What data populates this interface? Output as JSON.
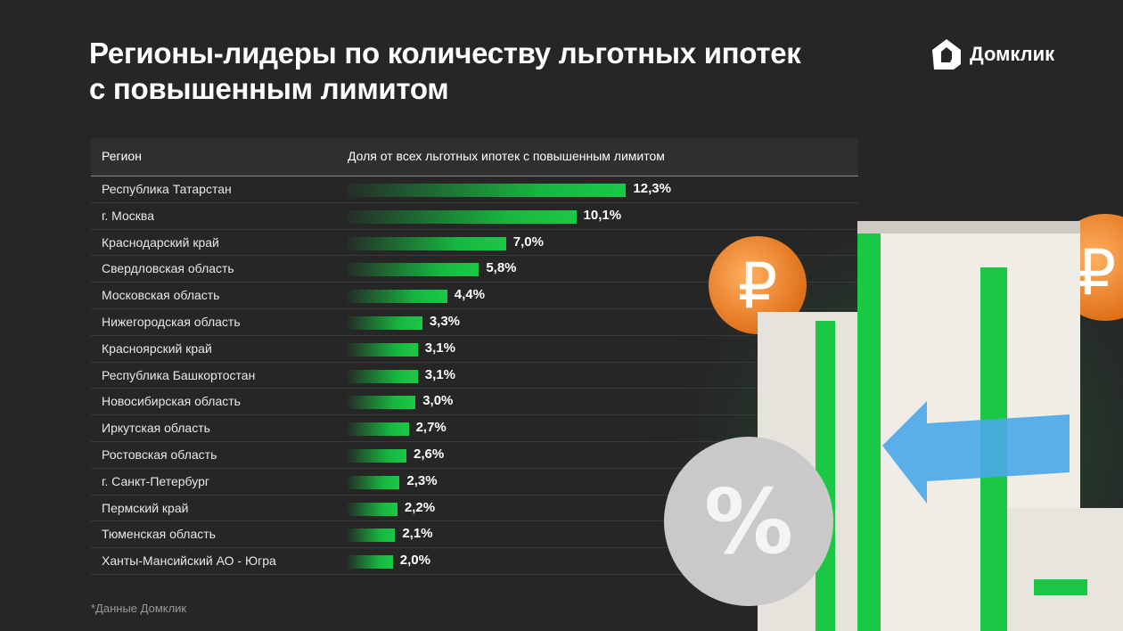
{
  "title": "Регионы-лидеры по количеству льготных ипотек с повышенным лимитом",
  "logo": {
    "text": "Домклик"
  },
  "footnote": "*Данные Домклик",
  "colors": {
    "background": "#262626",
    "bar": "#16b840"
  },
  "chart_data": {
    "type": "bar",
    "orientation": "horizontal",
    "columns": [
      "Регион",
      "Доля от всех льготных ипотек с повышенным лимитом"
    ],
    "categories": [
      "Республика Татарстан",
      "г. Москва",
      "Краснодарский край",
      "Свердловская область",
      "Московская область",
      "Нижегородская область",
      "Красноярский край",
      "Республика Башкортостан",
      "Новосибирская область",
      "Иркутская область",
      "Ростовская область",
      "г. Санкт-Петербург",
      "Пермский край",
      "Тюменская область",
      "Ханты-Мансийский АО - Югра"
    ],
    "values": [
      12.3,
      10.1,
      7.0,
      5.8,
      4.4,
      3.3,
      3.1,
      3.1,
      3.0,
      2.7,
      2.6,
      2.3,
      2.2,
      2.1,
      2.0
    ],
    "labels": [
      "12,3%",
      "10,1%",
      "7,0%",
      "5,8%",
      "4,4%",
      "3,3%",
      "3,1%",
      "3,1%",
      "3,0%",
      "2,7%",
      "2,6%",
      "2,3%",
      "2,2%",
      "2,1%",
      "2,0%"
    ],
    "unit": "%"
  }
}
